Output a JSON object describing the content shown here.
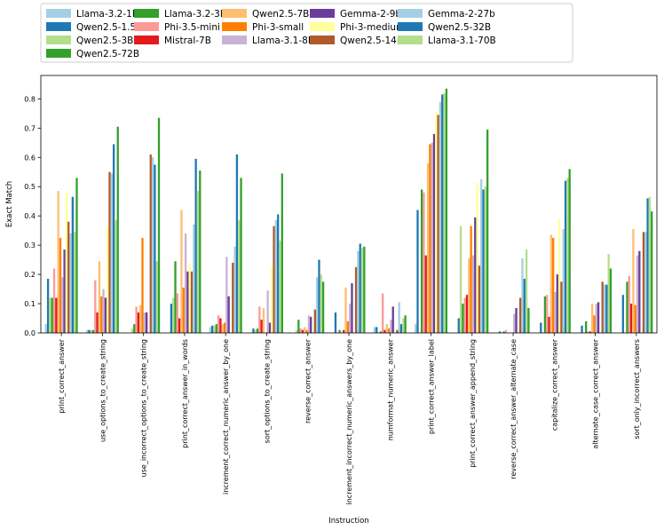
{
  "chart_data": {
    "type": "bar",
    "xlabel": "Instruction",
    "ylabel": "Exact Match",
    "ylim": [
      0,
      0.88
    ],
    "yticks": [
      "0.0",
      "0.1",
      "0.2",
      "0.3",
      "0.4",
      "0.5",
      "0.6",
      "0.7",
      "0.8"
    ],
    "grid": false,
    "legend_position": "top-left",
    "categories": [
      "print_correct_answer",
      "use_options_to_create_string",
      "use_incorrect_options_to_create_string",
      "print_correct_answer_in_words",
      "increment_correct_numeric_answer_by_one",
      "sort_options_to_create_string",
      "reverse_correct_answer",
      "increment_incorrect_numeric_answers_by_one",
      "numformat_numeric_answer",
      "print_correct_answer_label",
      "print_correct_answer_append_string",
      "reverse_correct_answer_alternate_case",
      "capitalize_correct_answer",
      "alternate_case_correct_answer",
      "sort_only_incorrect_answers"
    ],
    "series": [
      {
        "name": "Llama-3.2-1B",
        "color": "#a6cee3",
        "values": [
          0.03,
          0.01,
          0.0,
          0.0,
          0.02,
          0.0,
          0.0,
          0.0,
          0.02,
          0.03,
          0.0,
          0.0,
          0.0,
          0.0,
          0.0
        ]
      },
      {
        "name": "Qwen2.5-1.5B",
        "color": "#1f78b4",
        "values": [
          0.185,
          0.01,
          0.0,
          0.1,
          0.025,
          0.015,
          0.0,
          0.07,
          0.02,
          0.42,
          0.05,
          0.005,
          0.035,
          0.025,
          0.13
        ]
      },
      {
        "name": "Qwen2.5-3B",
        "color": "#b2df8a",
        "values": [
          0.12,
          0.01,
          0.015,
          0.12,
          0.025,
          0.01,
          0.01,
          0.0,
          0.0,
          0.0,
          0.365,
          0.0,
          0.0,
          0.0,
          0.0
        ]
      },
      {
        "name": "Llama-3.2-3B",
        "color": "#33a02c",
        "values": [
          0.12,
          0.01,
          0.03,
          0.245,
          0.03,
          0.015,
          0.045,
          0.01,
          0.005,
          0.49,
          0.1,
          0.005,
          0.125,
          0.04,
          0.175
        ]
      },
      {
        "name": "Phi-3.5-mini",
        "color": "#fb9a99",
        "values": [
          0.22,
          0.18,
          0.09,
          0.135,
          0.06,
          0.09,
          0.015,
          0.0,
          0.135,
          0.48,
          0.12,
          0.01,
          0.13,
          0.005,
          0.195
        ]
      },
      {
        "name": "Mistral-7B",
        "color": "#e31a1c",
        "values": [
          0.12,
          0.07,
          0.07,
          0.05,
          0.05,
          0.045,
          0.01,
          0.01,
          0.01,
          0.265,
          0.13,
          0.0,
          0.055,
          0.005,
          0.1
        ]
      },
      {
        "name": "Qwen2.5-7B",
        "color": "#fdbf6f",
        "values": [
          0.485,
          0.245,
          0.095,
          0.42,
          0.03,
          0.085,
          0.02,
          0.155,
          0.03,
          0.58,
          0.255,
          0.0,
          0.335,
          0.1,
          0.355
        ]
      },
      {
        "name": "Phi-3-small",
        "color": "#ff7f00",
        "values": [
          0.325,
          0.125,
          0.325,
          0.155,
          0.035,
          0.0,
          0.01,
          0.04,
          0.015,
          0.645,
          0.365,
          0.0,
          0.325,
          0.06,
          0.095
        ]
      },
      {
        "name": "Llama-3.1-8B",
        "color": "#cab2d6",
        "values": [
          0.19,
          0.15,
          0.07,
          0.34,
          0.26,
          0.145,
          0.06,
          0.1,
          0.045,
          0.65,
          0.265,
          0.065,
          0.14,
          0.1,
          0.265
        ]
      },
      {
        "name": "Gemma-2-9b",
        "color": "#6a3d9a",
        "values": [
          0.285,
          0.12,
          0.07,
          0.21,
          0.125,
          0.035,
          0.055,
          0.17,
          0.09,
          0.68,
          0.395,
          0.085,
          0.2,
          0.105,
          0.28
        ]
      },
      {
        "name": "Phi-3-medium",
        "color": "#ffff99",
        "values": [
          0.48,
          0.36,
          0.0,
          0.235,
          0.0,
          0.225,
          0.0,
          0.0,
          0.0,
          0.755,
          0.515,
          0.0,
          0.39,
          0.0,
          0.0
        ]
      },
      {
        "name": "Qwen2.5-14B",
        "color": "#b15928",
        "values": [
          0.38,
          0.55,
          0.61,
          0.21,
          0.24,
          0.365,
          0.08,
          0.225,
          0.01,
          0.745,
          0.23,
          0.12,
          0.175,
          0.175,
          0.345
        ]
      },
      {
        "name": "Gemma-2-27b",
        "color": "#a6cee3",
        "values": [
          0.34,
          0.545,
          0.6,
          0.37,
          0.295,
          0.385,
          0.19,
          0.28,
          0.105,
          0.79,
          0.525,
          0.255,
          0.355,
          0.165,
          0.345
        ]
      },
      {
        "name": "Qwen2.5-32B",
        "color": "#1f78b4",
        "values": [
          0.465,
          0.645,
          0.575,
          0.595,
          0.61,
          0.405,
          0.25,
          0.305,
          0.03,
          0.815,
          0.49,
          0.185,
          0.52,
          0.165,
          0.46
        ]
      },
      {
        "name": "Llama-3.1-70B",
        "color": "#b2df8a",
        "values": [
          0.345,
          0.385,
          0.245,
          0.485,
          0.385,
          0.315,
          0.2,
          0.29,
          0.05,
          0.82,
          0.5,
          0.285,
          0.53,
          0.27,
          0.465
        ]
      },
      {
        "name": "Qwen2.5-72B",
        "color": "#33a02c",
        "values": [
          0.53,
          0.705,
          0.735,
          0.555,
          0.53,
          0.545,
          0.175,
          0.295,
          0.06,
          0.835,
          0.695,
          0.085,
          0.56,
          0.22,
          0.415
        ]
      }
    ]
  }
}
